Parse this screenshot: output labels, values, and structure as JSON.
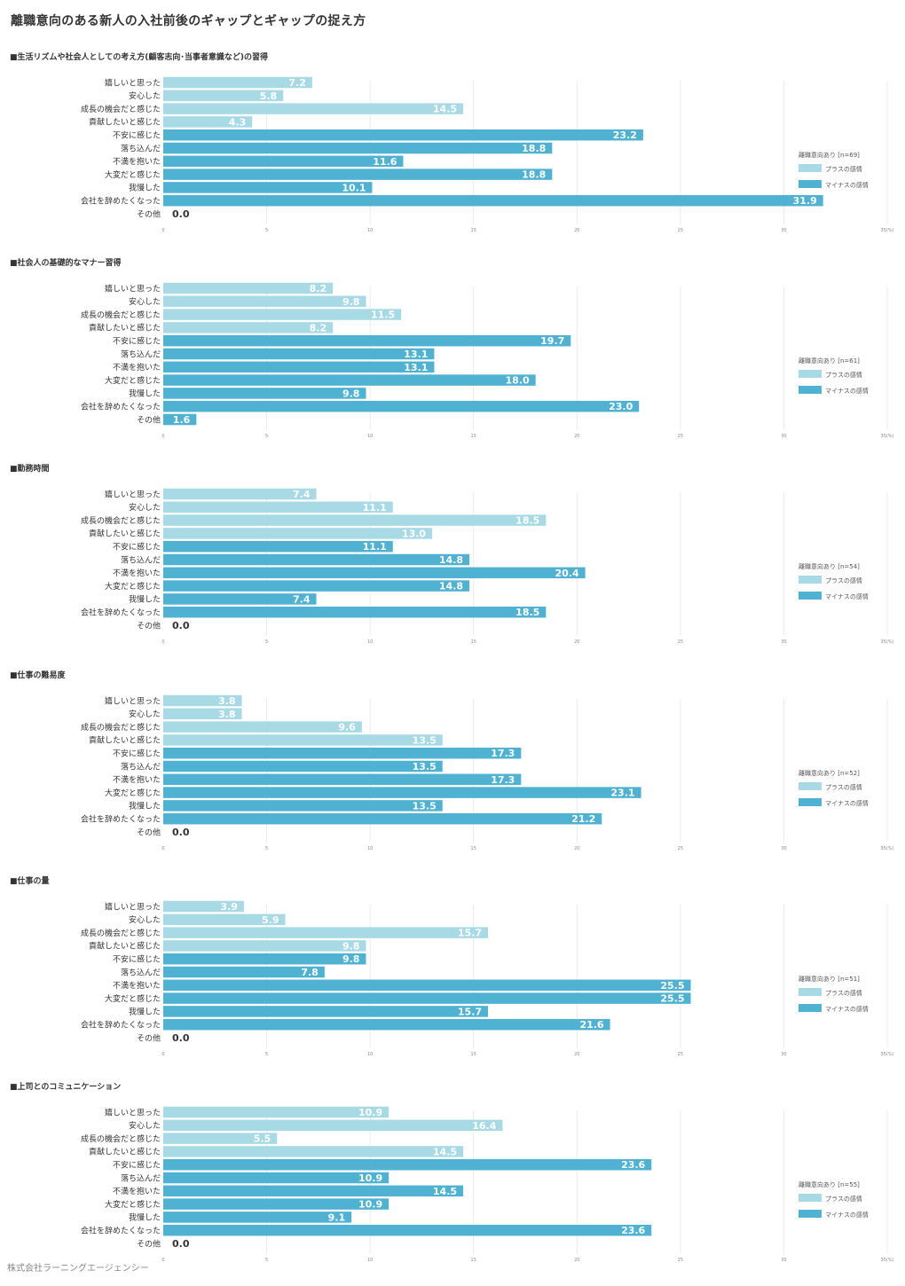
{
  "title": "離職意向のある新人の入社前後のギャップとギャップの捉え方",
  "footer": "株式会社ラーニングエージェンシー",
  "colors": {
    "plus": "#a8dae6",
    "minus": "#4fb2d3",
    "grid": "#e6e6e6"
  },
  "legend": {
    "plus": "プラスの感情",
    "minus": "マイナスの感情"
  },
  "chart_data": [
    {
      "type": "bar",
      "orientation": "horizontal",
      "title": "■生活リズムや社会人としての考え方(顧客志向･当事者意識など)の習得",
      "legend_title": "離職意向あり [n=69]",
      "categories": [
        "嬉しいと思った",
        "安心した",
        "成長の機会だと感じた",
        "貢献したいと感じた",
        "不安に感じた",
        "落ち込んだ",
        "不満を抱いた",
        "大変だと感じた",
        "我慢した",
        "会社を辞めたくなった",
        "その他"
      ],
      "values": [
        7.2,
        5.8,
        14.5,
        4.3,
        23.2,
        18.8,
        11.6,
        18.8,
        10.1,
        31.9,
        0.0
      ],
      "value_labels": [
        "7.2",
        "5.8",
        "14.5",
        "4.3",
        "23.2",
        "18.8",
        "11.6",
        "18.8",
        "10.1",
        "31.9",
        "0.0"
      ],
      "xlim": [
        0,
        35
      ],
      "ticks": [
        "0",
        "5",
        "10",
        "15",
        "20",
        "25",
        "30",
        "35(%)"
      ]
    },
    {
      "type": "bar",
      "orientation": "horizontal",
      "title": "■社会人の基礎的なマナー習得",
      "legend_title": "離職意向あり [n=61]",
      "categories": [
        "嬉しいと思った",
        "安心した",
        "成長の機会だと感じた",
        "貢献したいと感じた",
        "不安に感じた",
        "落ち込んだ",
        "不満を抱いた",
        "大変だと感じた",
        "我慢した",
        "会社を辞めたくなった",
        "その他"
      ],
      "values": [
        8.2,
        9.8,
        11.5,
        8.2,
        19.7,
        13.1,
        13.1,
        18.0,
        9.8,
        23.0,
        1.6
      ],
      "value_labels": [
        "8.2",
        "9.8",
        "11.5",
        "8.2",
        "19.7",
        "13.1",
        "13.1",
        "18.0",
        "9.8",
        "23.0",
        "1.6"
      ],
      "xlim": [
        0,
        35
      ],
      "ticks": [
        "0",
        "5",
        "10",
        "15",
        "20",
        "25",
        "30",
        "35(%)"
      ]
    },
    {
      "type": "bar",
      "orientation": "horizontal",
      "title": "■勤務時間",
      "legend_title": "離職意向あり [n=54]",
      "categories": [
        "嬉しいと思った",
        "安心した",
        "成長の機会だと感じた",
        "貢献したいと感じた",
        "不安に感じた",
        "落ち込んだ",
        "不満を抱いた",
        "大変だと感じた",
        "我慢した",
        "会社を辞めたくなった",
        "その他"
      ],
      "values": [
        7.4,
        11.1,
        18.5,
        13.0,
        11.1,
        14.8,
        20.4,
        14.8,
        7.4,
        18.5,
        0.0
      ],
      "value_labels": [
        "7.4",
        "11.1",
        "18.5",
        "13.0",
        "11.1",
        "14.8",
        "20.4",
        "14.8",
        "7.4",
        "18.5",
        "0.0"
      ],
      "xlim": [
        0,
        35
      ],
      "ticks": [
        "0",
        "5",
        "10",
        "15",
        "20",
        "25",
        "30",
        "35(%)"
      ]
    },
    {
      "type": "bar",
      "orientation": "horizontal",
      "title": "■仕事の難易度",
      "legend_title": "離職意向あり [n=52]",
      "categories": [
        "嬉しいと思った",
        "安心した",
        "成長の機会だと感じた",
        "貢献したいと感じた",
        "不安に感じた",
        "落ち込んだ",
        "不満を抱いた",
        "大変だと感じた",
        "我慢した",
        "会社を辞めたくなった",
        "その他"
      ],
      "values": [
        3.8,
        3.8,
        9.6,
        13.5,
        17.3,
        13.5,
        17.3,
        23.1,
        13.5,
        21.2,
        0.0
      ],
      "value_labels": [
        "3.8",
        "3.8",
        "9.6",
        "13.5",
        "17.3",
        "13.5",
        "17.3",
        "23.1",
        "13.5",
        "21.2",
        "0.0"
      ],
      "xlim": [
        0,
        35
      ],
      "ticks": [
        "0",
        "5",
        "10",
        "15",
        "20",
        "25",
        "30",
        "35(%)"
      ]
    },
    {
      "type": "bar",
      "orientation": "horizontal",
      "title": "■仕事の量",
      "legend_title": "離職意向あり [n=51]",
      "categories": [
        "嬉しいと思った",
        "安心した",
        "成長の機会だと感じた",
        "貢献したいと感じた",
        "不安に感じた",
        "落ち込んだ",
        "不満を抱いた",
        "大変だと感じた",
        "我慢した",
        "会社を辞めたくなった",
        "その他"
      ],
      "values": [
        3.9,
        5.9,
        15.7,
        9.8,
        9.8,
        7.8,
        25.5,
        25.5,
        15.7,
        21.6,
        0.0
      ],
      "value_labels": [
        "3.9",
        "5.9",
        "15.7",
        "9.8",
        "9.8",
        "7.8",
        "25.5",
        "25.5",
        "15.7",
        "21.6",
        "0.0"
      ],
      "xlim": [
        0,
        35
      ],
      "ticks": [
        "0",
        "5",
        "10",
        "15",
        "20",
        "25",
        "30",
        "35(%)"
      ]
    },
    {
      "type": "bar",
      "orientation": "horizontal",
      "title": "■上司とのコミュニケーション",
      "legend_title": "離職意向あり [n=55]",
      "categories": [
        "嬉しいと思った",
        "安心した",
        "成長の機会だと感じた",
        "貢献したいと感じた",
        "不安に感じた",
        "落ち込んだ",
        "不満を抱いた",
        "大変だと感じた",
        "我慢した",
        "会社を辞めたくなった",
        "その他"
      ],
      "values": [
        10.9,
        16.4,
        5.5,
        14.5,
        23.6,
        10.9,
        14.5,
        10.9,
        9.1,
        23.6,
        0.0
      ],
      "value_labels": [
        "10.9",
        "16.4",
        "5.5",
        "14.5",
        "23.6",
        "10.9",
        "14.5",
        "10.9",
        "9.1",
        "23.6",
        "0.0"
      ],
      "xlim": [
        0,
        35
      ],
      "ticks": [
        "0",
        "5",
        "10",
        "15",
        "20",
        "25",
        "30",
        "35(%)"
      ]
    }
  ]
}
